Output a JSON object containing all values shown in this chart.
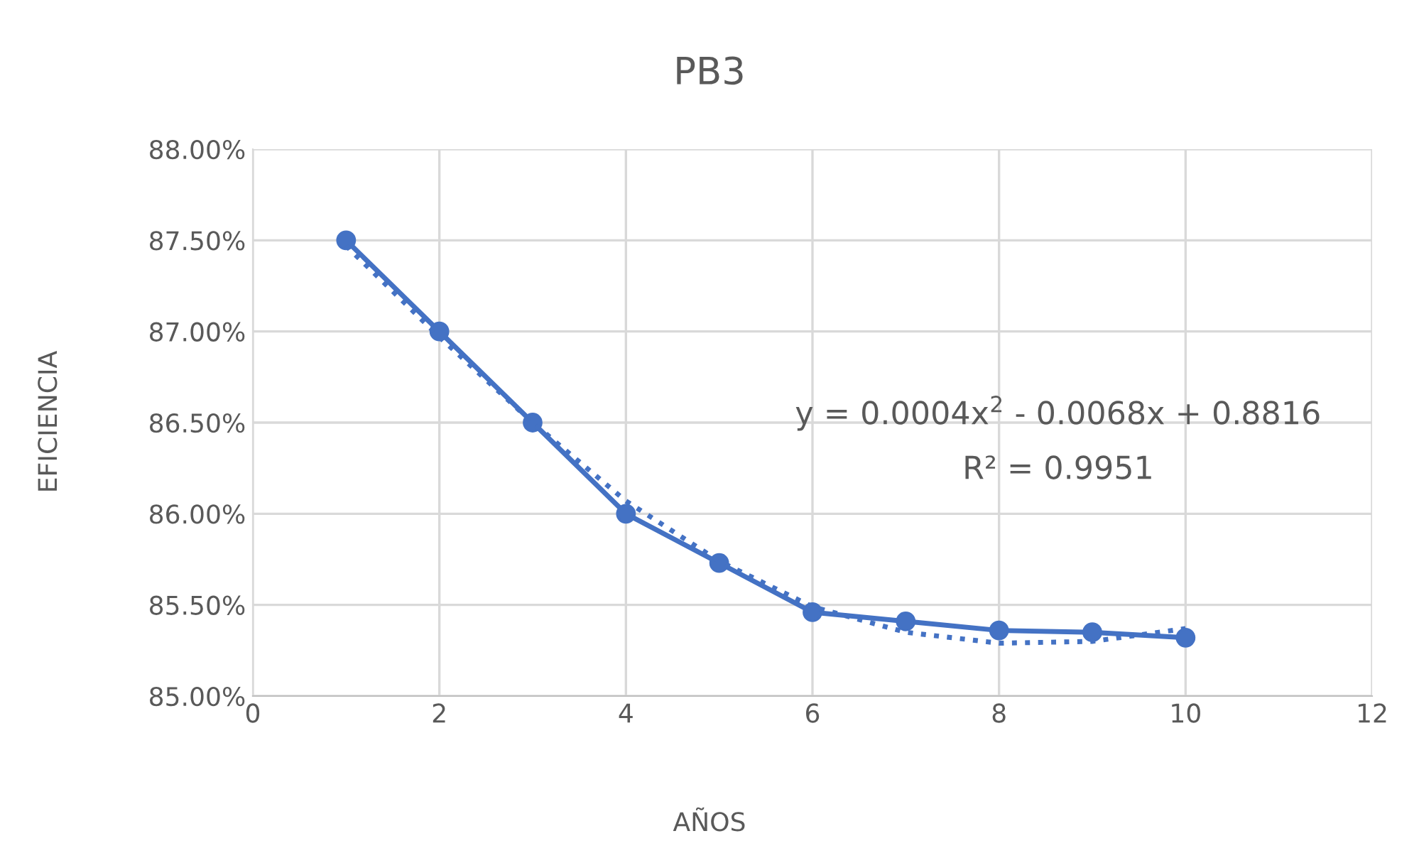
{
  "chart_data": {
    "type": "line",
    "title": "PB3",
    "xlabel": "AÑOS",
    "ylabel": "EFICIENCIA",
    "x": [
      1,
      2,
      3,
      4,
      5,
      6,
      7,
      8,
      9,
      10
    ],
    "series": [
      {
        "color": "#4472c4",
        "marker": "circle",
        "line_style": "solid",
        "values": [
          87.5,
          87.0,
          86.5,
          86.0,
          85.73,
          85.46,
          85.41,
          85.36,
          85.35,
          85.32
        ]
      },
      {
        "color": "#4472c4",
        "marker": "none",
        "line_style": "dotted",
        "x": [
          1,
          2,
          3,
          4,
          5,
          6,
          7,
          8,
          9,
          10
        ],
        "values": [
          87.47,
          86.97,
          86.5,
          86.07,
          85.74,
          85.49,
          85.35,
          85.29,
          85.3,
          85.37
        ]
      }
    ],
    "xlim": [
      0,
      12
    ],
    "xticks": [
      0,
      2,
      4,
      6,
      8,
      10,
      12
    ],
    "ylim": [
      85.0,
      88.0
    ],
    "yticks": [
      {
        "value": 85.0,
        "label": "85.00%"
      },
      {
        "value": 85.5,
        "label": "85.50%"
      },
      {
        "value": 86.0,
        "label": "86.00%"
      },
      {
        "value": 86.5,
        "label": "86.50%"
      },
      {
        "value": 87.0,
        "label": "87.00%"
      },
      {
        "value": 87.5,
        "label": "87.50%"
      },
      {
        "value": 88.0,
        "label": "88.00%"
      }
    ],
    "grid": true,
    "annotations": [
      "y = 0.0004x$^{2}$ - 0.0068x + 0.8816",
      "R² = 0.9951"
    ]
  }
}
